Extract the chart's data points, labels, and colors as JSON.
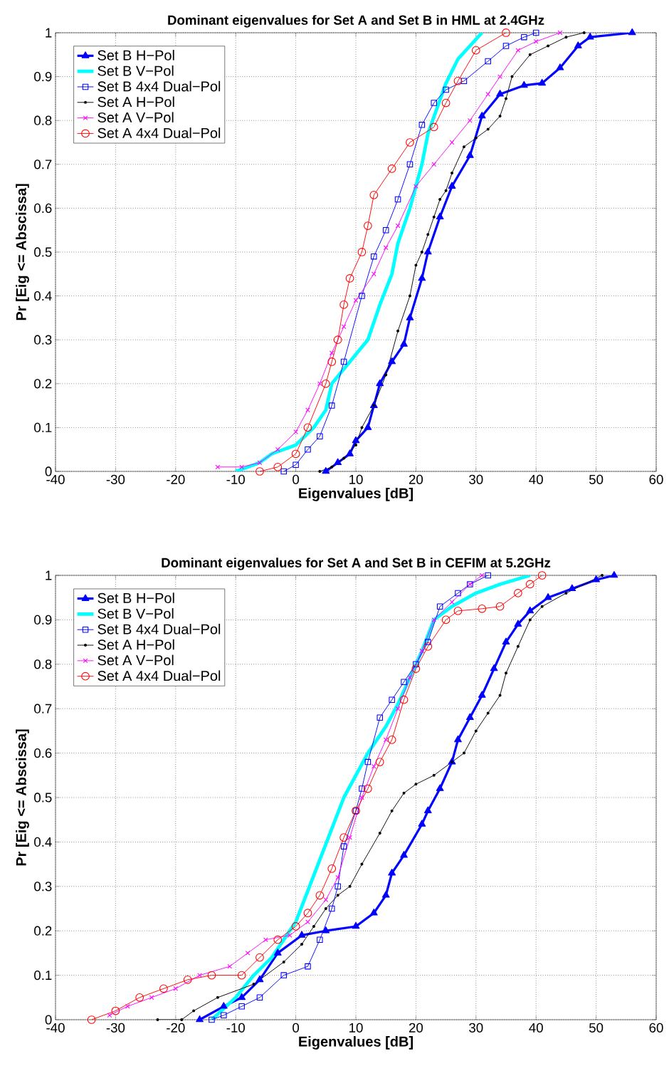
{
  "chart_data": [
    {
      "type": "line",
      "title": "Dominant eigenvalues for Set A and Set B in HML at 2.4GHz",
      "xlabel": "Eigenvalues [dB]",
      "ylabel": "Pr [Eig <= Abscissa]",
      "xlim": [
        -40,
        60
      ],
      "ylim": [
        0,
        1
      ],
      "xticks": [
        -40,
        -30,
        -20,
        -10,
        0,
        10,
        20,
        30,
        40,
        50,
        60
      ],
      "yticks": [
        0,
        0.1,
        0.2,
        0.3,
        0.4,
        0.5,
        0.6,
        0.7,
        0.8,
        0.9,
        1
      ],
      "grid": true,
      "legend": "top left",
      "series": [
        {
          "name": "Set B H−Pol",
          "color": "#0000ff",
          "marker": "triangle",
          "x": [
            5,
            7,
            9,
            10,
            12,
            13,
            14,
            16,
            18,
            19,
            21,
            22,
            24,
            26,
            29,
            31,
            34,
            38,
            41,
            44,
            47,
            49,
            56
          ],
          "values": [
            0,
            0.02,
            0.04,
            0.07,
            0.1,
            0.15,
            0.2,
            0.25,
            0.29,
            0.35,
            0.44,
            0.5,
            0.58,
            0.65,
            0.72,
            0.81,
            0.86,
            0.88,
            0.885,
            0.92,
            0.97,
            0.99,
            1
          ]
        },
        {
          "name": "Set B V−Pol",
          "color": "#00ffff",
          "marker": "none",
          "x": [
            -10,
            -6,
            -4,
            0,
            3,
            5,
            6,
            9,
            12,
            14,
            16,
            17,
            19,
            21,
            22,
            25,
            27,
            31
          ],
          "values": [
            0,
            0.02,
            0.04,
            0.06,
            0.1,
            0.14,
            0.2,
            0.25,
            0.3,
            0.38,
            0.45,
            0.52,
            0.6,
            0.7,
            0.77,
            0.885,
            0.94,
            1
          ]
        },
        {
          "name": "Set B 4x4 Dual−Pol",
          "color": "#0000ff",
          "marker": "square",
          "x": [
            -2,
            0,
            2,
            4,
            6,
            8,
            11,
            13,
            15,
            17,
            19,
            21,
            23,
            25,
            28,
            32,
            35,
            38,
            40
          ],
          "values": [
            0,
            0.015,
            0.05,
            0.08,
            0.15,
            0.25,
            0.4,
            0.49,
            0.55,
            0.62,
            0.7,
            0.79,
            0.84,
            0.87,
            0.89,
            0.935,
            0.97,
            0.99,
            1
          ]
        },
        {
          "name": "Set A H−Pol",
          "color": "#000000",
          "marker": "dot",
          "x": [
            4,
            6,
            8,
            10,
            11,
            13,
            15,
            17,
            19,
            20,
            21,
            22,
            23,
            24,
            25,
            26,
            28,
            30,
            32,
            34,
            35,
            36,
            39,
            42,
            45,
            48
          ],
          "values": [
            0,
            0.01,
            0.03,
            0.06,
            0.1,
            0.15,
            0.22,
            0.32,
            0.4,
            0.47,
            0.5,
            0.54,
            0.58,
            0.62,
            0.64,
            0.68,
            0.74,
            0.76,
            0.78,
            0.81,
            0.85,
            0.9,
            0.95,
            0.97,
            0.99,
            1
          ]
        },
        {
          "name": "Set A V−Pol",
          "color": "#ff00ff",
          "marker": "cross",
          "x": [
            -13,
            -9,
            -6,
            -3,
            0,
            2,
            4,
            6,
            8,
            10,
            13,
            15,
            17,
            20,
            23,
            26,
            29,
            32,
            34,
            37,
            40,
            44
          ],
          "values": [
            0.01,
            0.01,
            0.02,
            0.05,
            0.09,
            0.14,
            0.2,
            0.27,
            0.33,
            0.39,
            0.45,
            0.51,
            0.56,
            0.65,
            0.7,
            0.75,
            0.8,
            0.86,
            0.9,
            0.96,
            0.98,
            1
          ]
        },
        {
          "name": "Set A 4x4 Dual−Pol",
          "color": "#ff0000",
          "marker": "circle",
          "x": [
            -6,
            -3,
            0,
            2,
            5,
            6,
            7,
            8,
            9,
            11,
            12,
            13,
            16,
            19,
            23,
            25,
            27,
            30,
            35
          ],
          "values": [
            0,
            0.01,
            0.04,
            0.1,
            0.2,
            0.25,
            0.3,
            0.38,
            0.44,
            0.5,
            0.56,
            0.63,
            0.69,
            0.75,
            0.785,
            0.84,
            0.89,
            0.96,
            1
          ]
        }
      ]
    },
    {
      "type": "line",
      "title": "Dominant eigenvalues for Set A and Set B in CEFIM at 5.2GHz",
      "xlabel": "Eigenvalues [dB]",
      "ylabel": "Pr [Eig <= Abscissa]",
      "xlim": [
        -40,
        60
      ],
      "ylim": [
        0,
        1
      ],
      "xticks": [
        -40,
        -30,
        -20,
        -10,
        0,
        10,
        20,
        30,
        40,
        50,
        60
      ],
      "yticks": [
        0,
        0.1,
        0.2,
        0.3,
        0.4,
        0.5,
        0.6,
        0.7,
        0.8,
        0.9,
        1
      ],
      "grid": true,
      "legend": "top left",
      "series": [
        {
          "name": "Set B H−Pol",
          "color": "#0000ff",
          "marker": "triangle",
          "x": [
            -16,
            -12,
            -9,
            -6,
            -3,
            1,
            5,
            10,
            13,
            15,
            16,
            18,
            21,
            22,
            24,
            26,
            27,
            29,
            31,
            33,
            35,
            37,
            39,
            42,
            46,
            50,
            53
          ],
          "values": [
            0,
            0.03,
            0.05,
            0.09,
            0.15,
            0.19,
            0.2,
            0.21,
            0.24,
            0.28,
            0.33,
            0.37,
            0.44,
            0.47,
            0.52,
            0.58,
            0.63,
            0.68,
            0.73,
            0.79,
            0.85,
            0.89,
            0.92,
            0.95,
            0.97,
            0.99,
            1
          ]
        },
        {
          "name": "Set B V−Pol",
          "color": "#00ffff",
          "marker": "none",
          "x": [
            -14,
            -10,
            -7,
            -4,
            -2,
            0,
            2,
            4,
            6,
            8,
            10,
            12,
            15,
            17,
            19,
            21,
            23,
            26,
            30,
            34,
            39
          ],
          "values": [
            0,
            0.05,
            0.1,
            0.14,
            0.18,
            0.22,
            0.29,
            0.36,
            0.43,
            0.5,
            0.55,
            0.6,
            0.66,
            0.71,
            0.77,
            0.83,
            0.9,
            0.93,
            0.96,
            0.98,
            1
          ]
        },
        {
          "name": "Set B 4x4 Dual−Pol",
          "color": "#0000ff",
          "marker": "square",
          "x": [
            -14,
            -12,
            -9,
            -6,
            -2,
            2,
            4,
            6,
            7,
            8,
            10,
            11,
            12,
            14,
            16,
            18,
            20,
            22,
            24,
            27,
            29,
            32
          ],
          "values": [
            0,
            0.01,
            0.03,
            0.05,
            0.1,
            0.12,
            0.18,
            0.25,
            0.3,
            0.39,
            0.47,
            0.52,
            0.58,
            0.68,
            0.72,
            0.76,
            0.8,
            0.85,
            0.93,
            0.96,
            0.98,
            1
          ]
        },
        {
          "name": "Set A H−Pol",
          "color": "#000000",
          "marker": "dot",
          "x": [
            -23,
            -19,
            -17,
            -13,
            -7,
            -2,
            1,
            3,
            5,
            7,
            9,
            11,
            14,
            16,
            18,
            20,
            23,
            26,
            28,
            30,
            32,
            34,
            35,
            37,
            39,
            41,
            45,
            51
          ],
          "values": [
            0,
            0,
            0.02,
            0.05,
            0.08,
            0.13,
            0.17,
            0.21,
            0.25,
            0.28,
            0.3,
            0.35,
            0.42,
            0.47,
            0.51,
            0.53,
            0.55,
            0.58,
            0.6,
            0.65,
            0.69,
            0.73,
            0.78,
            0.84,
            0.9,
            0.93,
            0.96,
            1
          ]
        },
        {
          "name": "Set A V−Pol",
          "color": "#ff00ff",
          "marker": "cross",
          "x": [
            -31,
            -28,
            -24,
            -20,
            -16,
            -11,
            -8,
            -5,
            -1,
            2,
            5,
            7,
            9,
            11,
            13,
            15,
            17,
            19,
            21,
            23,
            26,
            29,
            31
          ],
          "values": [
            0.01,
            0.03,
            0.05,
            0.07,
            0.1,
            0.12,
            0.15,
            0.18,
            0.19,
            0.22,
            0.27,
            0.32,
            0.41,
            0.5,
            0.57,
            0.63,
            0.7,
            0.77,
            0.83,
            0.9,
            0.94,
            0.98,
            1
          ]
        },
        {
          "name": "Set A 4x4 Dual−Pol",
          "color": "#ff0000",
          "marker": "circle",
          "x": [
            -34,
            -30,
            -26,
            -22,
            -18,
            -14,
            -9,
            -6,
            -3,
            0,
            2,
            4,
            6,
            8,
            10,
            12,
            14,
            16,
            18,
            20,
            22,
            25,
            27,
            31,
            34,
            37,
            39,
            41
          ],
          "values": [
            0,
            0.02,
            0.05,
            0.07,
            0.09,
            0.1,
            0.1,
            0.14,
            0.18,
            0.21,
            0.24,
            0.28,
            0.34,
            0.41,
            0.47,
            0.52,
            0.58,
            0.63,
            0.72,
            0.79,
            0.84,
            0.9,
            0.92,
            0.925,
            0.93,
            0.96,
            0.98,
            1
          ]
        }
      ]
    }
  ]
}
